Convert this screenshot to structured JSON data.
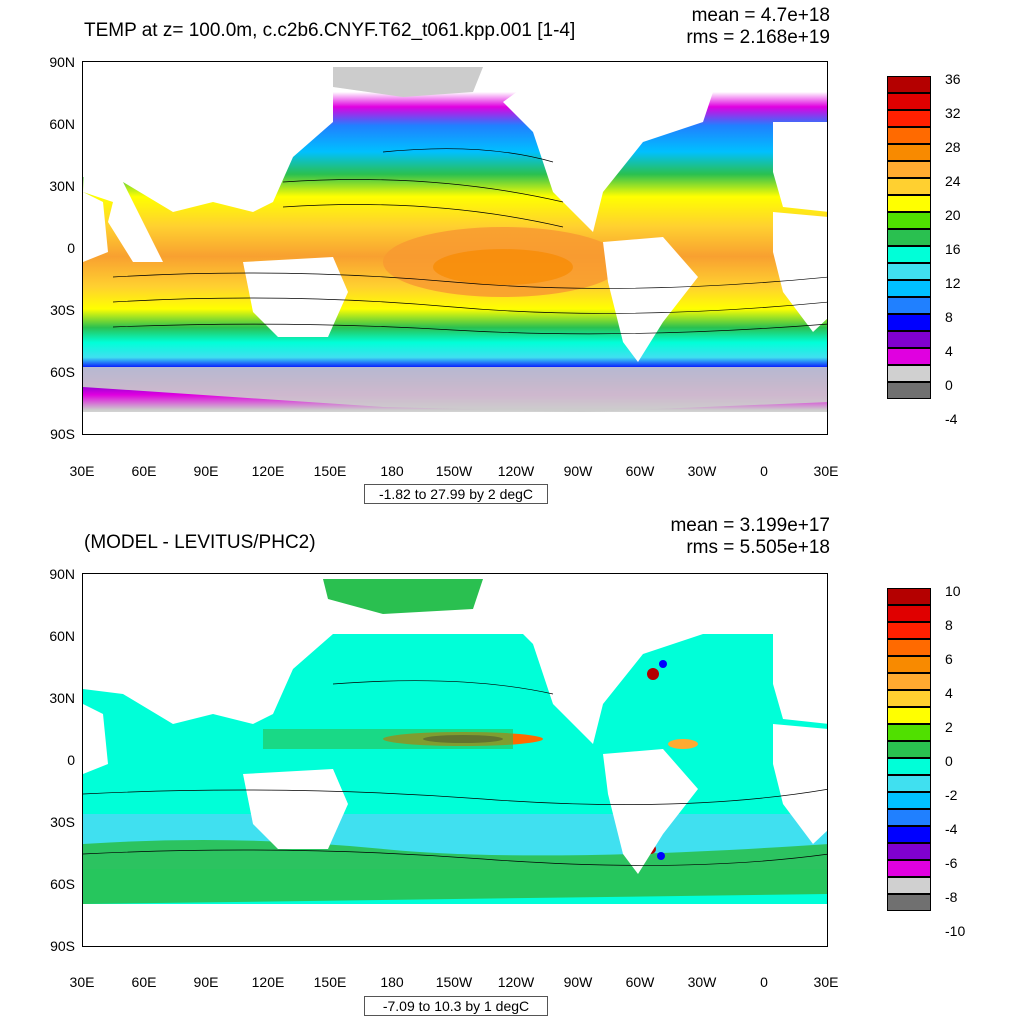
{
  "panels": [
    {
      "title": "TEMP at z= 100.0m, c.c2b6.CNYF.T62_t061.kpp.001 [1-4]",
      "mean_text": "mean = 4.7e+18",
      "rms_text": "rms = 2.168e+19",
      "range_text": "-1.82 to 27.99 by 2 degC",
      "colorbar_labels": [
        "36",
        "32",
        "28",
        "24",
        "20",
        "16",
        "12",
        "8",
        "4",
        "0",
        "-4"
      ],
      "colorbar_colors": [
        "#b40000",
        "#e00000",
        "#ff2000",
        "#ff6a00",
        "#f88a00",
        "#ffaa30",
        "#ffd030",
        "#ffff00",
        "#50e000",
        "#2ac050",
        "#00ffd8",
        "#40e0f0",
        "#00c0ff",
        "#2080ff",
        "#0000ff",
        "#8000d0",
        "#e000e0",
        "#d0d0d0",
        "#707070"
      ],
      "y_ticks": [
        "90N",
        "60N",
        "30N",
        "0",
        "30S",
        "60S",
        "90S"
      ],
      "x_ticks": [
        "30E",
        "60E",
        "90E",
        "120E",
        "150E",
        "180",
        "150W",
        "120W",
        "90W",
        "60W",
        "30W",
        "0",
        "30E"
      ]
    },
    {
      "title": "(MODEL - LEVITUS/PHC2)",
      "mean_text": "mean = 3.199e+17",
      "rms_text": "rms = 5.505e+18",
      "range_text": "-7.09 to 10.3 by 1 degC",
      "colorbar_labels": [
        "10",
        "8",
        "6",
        "4",
        "2",
        "0",
        "-2",
        "-4",
        "-6",
        "-8",
        "-10"
      ],
      "colorbar_colors": [
        "#b40000",
        "#e00000",
        "#ff2000",
        "#ff6a00",
        "#f88a00",
        "#ffaa30",
        "#ffd030",
        "#ffff00",
        "#50e000",
        "#2ac050",
        "#00ffd8",
        "#40e0f0",
        "#00c0ff",
        "#2080ff",
        "#0000ff",
        "#8000d0",
        "#e000e0",
        "#d0d0d0",
        "#707070"
      ],
      "y_ticks": [
        "90N",
        "60N",
        "30N",
        "0",
        "30S",
        "60S",
        "90S"
      ],
      "x_ticks": [
        "30E",
        "60E",
        "90E",
        "120E",
        "150E",
        "180",
        "150W",
        "120W",
        "90W",
        "60W",
        "30W",
        "0",
        "30E"
      ]
    }
  ],
  "land_color": "#ffffff",
  "ice_color": "#cccccc"
}
